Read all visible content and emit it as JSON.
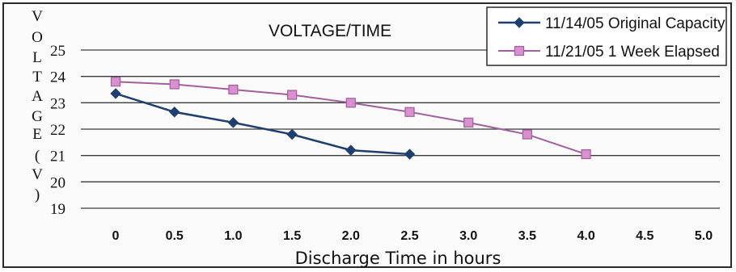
{
  "chart_data": {
    "type": "line",
    "title": "VOLTAGE/TIME",
    "xlabel": "Discharge Time in hours",
    "ylabel_letters": [
      "V",
      "O",
      "L",
      "T",
      "A",
      "G",
      "E",
      "(",
      "V",
      ")"
    ],
    "ylim": [
      19,
      25
    ],
    "xlim": [
      0,
      5
    ],
    "grid": "horizontal",
    "legend_position": "top-right",
    "x_ticks": [
      "0",
      "0.5",
      "1.0",
      "1.5",
      "2.0",
      "2.5",
      "3.0",
      "3.5",
      "4.0",
      "4.5",
      "5.0"
    ],
    "y_ticks": [
      "19",
      "20",
      "21",
      "22",
      "23",
      "24",
      "25"
    ],
    "series": [
      {
        "name": "11/14/05 Original Capacity",
        "color": "#1f3f6e",
        "marker": "diamond",
        "x": [
          0,
          0.5,
          1.0,
          1.5,
          2.0,
          2.5
        ],
        "y": [
          23.35,
          22.65,
          22.25,
          21.8,
          21.2,
          21.05
        ]
      },
      {
        "name": "11/21/05 1 Week Elapsed",
        "color": "#a0609a",
        "marker": "square",
        "x": [
          0,
          0.5,
          1.0,
          1.5,
          2.0,
          2.5,
          3.0,
          3.5,
          4.0
        ],
        "y": [
          23.8,
          23.7,
          23.5,
          23.3,
          23.0,
          22.65,
          22.25,
          21.8,
          21.05
        ]
      }
    ]
  }
}
